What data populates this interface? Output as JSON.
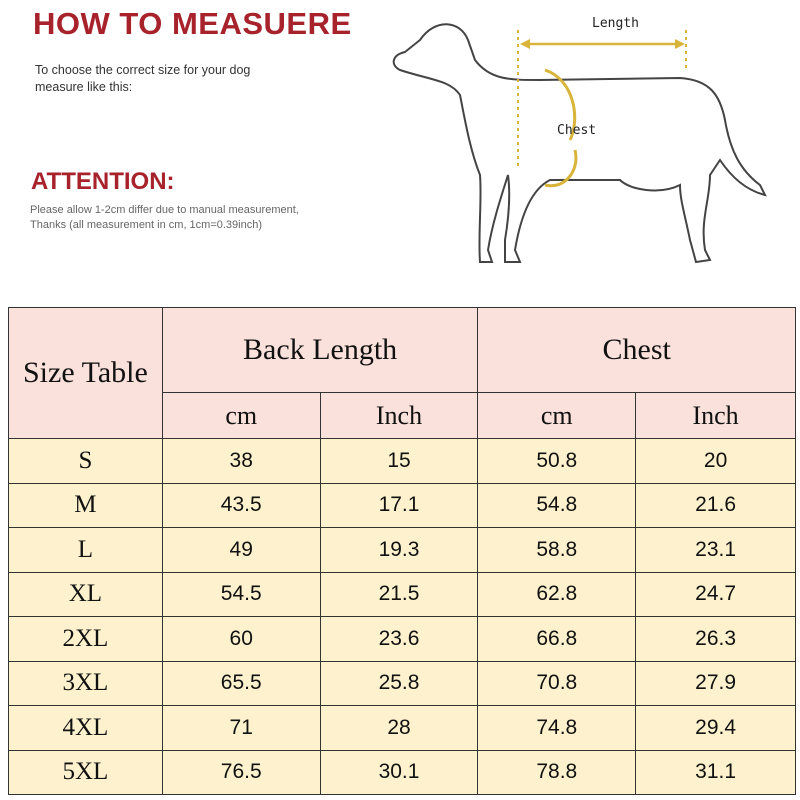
{
  "heading": "HOW TO MEASUERE",
  "intro": "To choose the correct size for your dog measure like this:",
  "attention_title": "ATTENTION:",
  "attention_lines": [
    "Please allow 1-2cm differ due to manual measurement,",
    "Thanks (all measurement in cm, 1cm=0.39inch)"
  ],
  "diagram": {
    "length_label": "Length",
    "chest_label": "Chest",
    "arrow_color": "#d8b43a"
  },
  "colors": {
    "title": "#a8222c",
    "header_bg": "#fbe1db",
    "row_bg": "#fdf2cd"
  },
  "table": {
    "corner": "Size Table",
    "groups": [
      "Back Length",
      "Chest"
    ],
    "units": [
      "cm",
      "Inch",
      "cm",
      "Inch"
    ],
    "rows": [
      [
        "S",
        "38",
        "15",
        "50.8",
        "20"
      ],
      [
        "M",
        "43.5",
        "17.1",
        "54.8",
        "21.6"
      ],
      [
        "L",
        "49",
        "19.3",
        "58.8",
        "23.1"
      ],
      [
        "XL",
        "54.5",
        "21.5",
        "62.8",
        "24.7"
      ],
      [
        "2XL",
        "60",
        "23.6",
        "66.8",
        "26.3"
      ],
      [
        "3XL",
        "65.5",
        "25.8",
        "70.8",
        "27.9"
      ],
      [
        "4XL",
        "71",
        "28",
        "74.8",
        "29.4"
      ],
      [
        "5XL",
        "76.5",
        "30.1",
        "78.8",
        "31.1"
      ]
    ]
  }
}
